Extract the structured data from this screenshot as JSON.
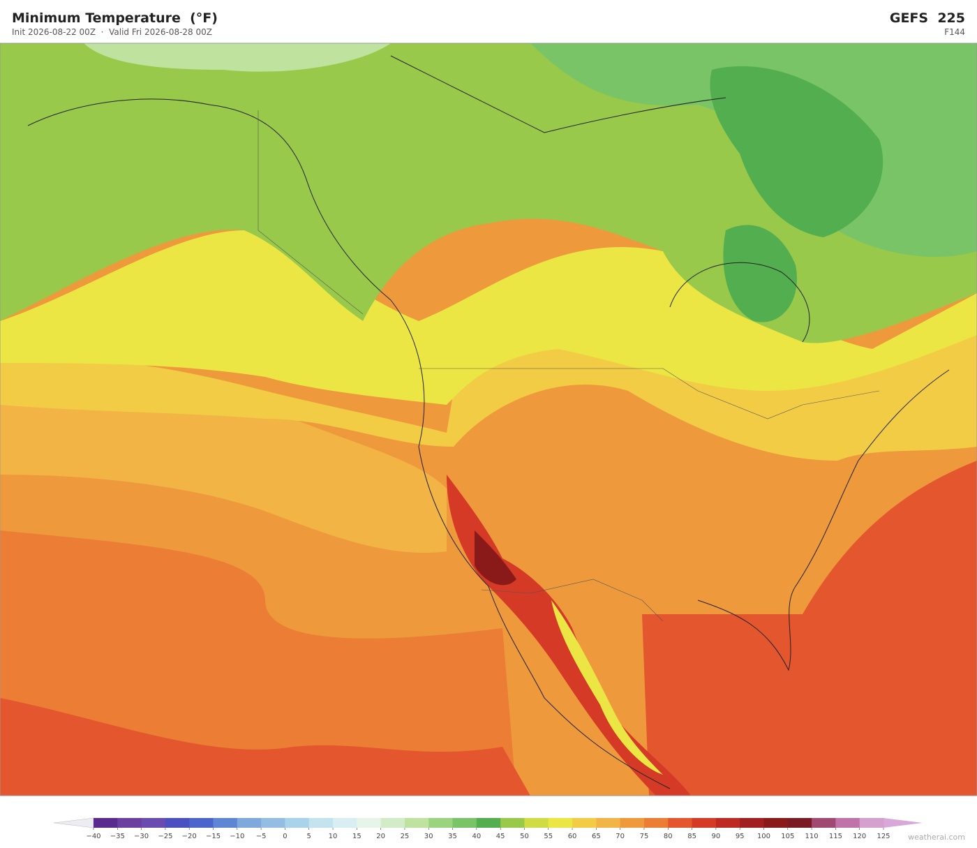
{
  "header": {
    "title": "Minimum Temperature  (°F)",
    "subtitle": "Init 2026-08-22 00Z  ·  Valid Fri 2026-08-28 00Z",
    "model": "GEFS  225",
    "forecast_hour": "F144"
  },
  "colorbar": {
    "ticks": [
      {
        "value": -40,
        "label": "−40"
      },
      {
        "value": -35,
        "label": "−35"
      },
      {
        "value": -30,
        "label": "−30"
      },
      {
        "value": -25,
        "label": "−25"
      },
      {
        "value": -20,
        "label": "−20"
      },
      {
        "value": -15,
        "label": "−15"
      },
      {
        "value": -10,
        "label": "−10"
      },
      {
        "value": -5,
        "label": "−5"
      },
      0,
      5,
      10,
      15,
      20,
      25,
      30,
      35,
      40,
      45,
      50,
      55,
      60,
      65,
      70,
      75,
      80,
      85,
      90,
      95,
      100,
      105,
      110,
      115,
      120,
      125
    ],
    "colors": [
      "#5b2a8f",
      "#6b3fa0",
      "#6a4bb0",
      "#4b4fc0",
      "#4a66cc",
      "#5e86d4",
      "#7fa8dc",
      "#94bde3",
      "#a9d3ea",
      "#c3e3ef",
      "#d8eef2",
      "#e6f4ea",
      "#d3ecc8",
      "#bfe29f",
      "#9bd47e",
      "#78c466",
      "#52ae4e",
      "#98c94a",
      "#cfdc45",
      "#ece644",
      "#f3cc46",
      "#f2b445",
      "#ee9a3c",
      "#eb7d35",
      "#e4562d",
      "#d43a26",
      "#bd2a22",
      "#a21f1f",
      "#8a1a1a",
      "#7a1a22",
      "#a04a72",
      "#bf73a8",
      "#d59fce"
    ],
    "under_color": "#ececf2",
    "over_color": "#d8a8d8"
  },
  "footer": {
    "credit": "weatherai.com"
  }
}
